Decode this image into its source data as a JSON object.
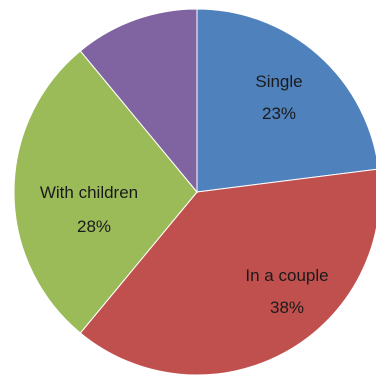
{
  "chart_data": {
    "type": "pie",
    "slices": [
      {
        "label": "Single",
        "value": 23,
        "value_label": "23%",
        "color": "#4f81bd"
      },
      {
        "label": "In a couple",
        "value": 38,
        "value_label": "38%",
        "color": "#c0504d"
      },
      {
        "label": "With children",
        "value": 28,
        "value_label": "28%",
        "color": "#9bbb59"
      },
      {
        "label": "",
        "value": 11,
        "value_label": "",
        "color": "#8064a2"
      }
    ],
    "start_angle_deg": 0,
    "direction": "clockwise",
    "legend": "none"
  }
}
